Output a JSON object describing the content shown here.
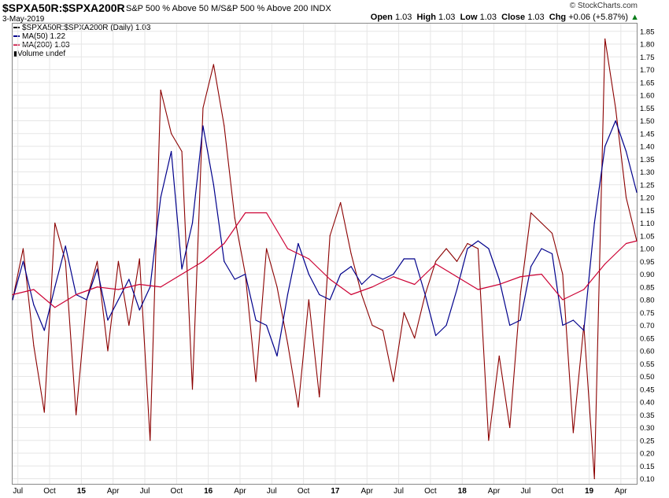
{
  "header": {
    "symbol": "$SPXA50R:$SPXA200R",
    "description": "S&P 500 % Above 50 M/S&P 500 % Above 200",
    "exchange": "INDX",
    "date": "3-May-2019",
    "brand": "© StockCharts.com",
    "open_label": "Open",
    "open": "1.03",
    "high_label": "High",
    "high": "1.03",
    "low_label": "Low",
    "low": "1.03",
    "close_label": "Close",
    "close": "1.03",
    "chg_label": "Chg",
    "chg": "+0.06 (+5.87%)",
    "chg_arrow": "▲"
  },
  "legend": {
    "price": "$SPXA50R:$SPXA200R (Daily) 1.03",
    "ma50": "MA(50) 1.22",
    "ma200": "MA(200) 1.03",
    "volume": "Volume undef"
  },
  "colors": {
    "price_up": "#000000",
    "price_down": "#8b0000",
    "ma50": "#00008b",
    "ma200": "#cc0033",
    "grid": "#e6e6e6"
  },
  "chart_data": {
    "type": "line",
    "x_axis_labels": [
      "Jul",
      "Oct",
      "15",
      "Apr",
      "Jul",
      "Oct",
      "16",
      "Apr",
      "Jul",
      "Oct",
      "17",
      "Apr",
      "Jul",
      "Oct",
      "18",
      "Apr",
      "Jul",
      "Oct",
      "19",
      "Apr"
    ],
    "y_ticks": [
      "1.85",
      "1.80",
      "1.75",
      "1.70",
      "1.65",
      "1.60",
      "1.55",
      "1.50",
      "1.45",
      "1.40",
      "1.35",
      "1.30",
      "1.25",
      "1.20",
      "1.15",
      "1.10",
      "1.05",
      "1.00",
      "0.95",
      "0.90",
      "0.85",
      "0.80",
      "0.75",
      "0.70",
      "0.65",
      "0.60",
      "0.55",
      "0.50",
      "0.45",
      "0.40",
      "0.35",
      "0.30",
      "0.25",
      "0.20",
      "0.15",
      "0.10"
    ],
    "ylim": [
      0.08,
      1.88
    ],
    "grid": true,
    "scale": "linear",
    "x_range_months": 59,
    "series": [
      {
        "name": "$SPXA50R:$SPXA200R",
        "style": "price",
        "x": [
          0,
          1,
          2,
          3,
          4,
          5,
          6,
          7,
          8,
          9,
          10,
          11,
          12,
          13,
          14,
          15,
          16,
          17,
          18,
          19,
          20,
          21,
          22,
          23,
          24,
          25,
          26,
          27,
          28,
          29,
          30,
          31,
          32,
          33,
          34,
          35,
          36,
          37,
          38,
          39,
          40,
          41,
          42,
          43,
          44,
          45,
          46,
          47,
          48,
          49,
          50,
          51,
          52,
          53,
          54,
          55,
          56,
          57,
          58,
          59
        ],
        "y": [
          0.8,
          1.0,
          0.62,
          0.36,
          1.1,
          0.95,
          0.35,
          0.8,
          0.95,
          0.6,
          0.95,
          0.7,
          0.96,
          0.25,
          1.62,
          1.45,
          1.38,
          0.45,
          1.55,
          1.72,
          1.48,
          1.12,
          0.9,
          0.48,
          1.0,
          0.85,
          0.63,
          0.38,
          0.8,
          0.42,
          1.05,
          1.18,
          0.98,
          0.82,
          0.7,
          0.68,
          0.48,
          0.75,
          0.65,
          0.82,
          0.95,
          1.0,
          0.95,
          1.02,
          1.0,
          0.25,
          0.58,
          0.3,
          0.82,
          1.14,
          1.1,
          1.06,
          0.9,
          0.28,
          0.7,
          0.1,
          1.82,
          1.55,
          1.2,
          1.03
        ]
      },
      {
        "name": "MA(50)",
        "style": "ma50",
        "x": [
          0,
          1,
          2,
          3,
          4,
          5,
          6,
          7,
          8,
          9,
          10,
          11,
          12,
          13,
          14,
          15,
          16,
          17,
          18,
          19,
          20,
          21,
          22,
          23,
          24,
          25,
          26,
          27,
          28,
          29,
          30,
          31,
          32,
          33,
          34,
          35,
          36,
          37,
          38,
          39,
          40,
          41,
          42,
          43,
          44,
          45,
          46,
          47,
          48,
          49,
          50,
          51,
          52,
          53,
          54,
          55,
          56,
          57,
          58,
          59
        ],
        "y": [
          0.8,
          0.95,
          0.78,
          0.68,
          0.85,
          1.01,
          0.82,
          0.8,
          0.92,
          0.72,
          0.8,
          0.88,
          0.76,
          0.85,
          1.2,
          1.38,
          0.92,
          1.1,
          1.48,
          1.25,
          0.95,
          0.88,
          0.9,
          0.72,
          0.7,
          0.58,
          0.82,
          1.02,
          0.9,
          0.82,
          0.8,
          0.9,
          0.93,
          0.86,
          0.9,
          0.88,
          0.9,
          0.96,
          0.96,
          0.82,
          0.66,
          0.7,
          0.84,
          1.0,
          1.03,
          1.0,
          0.88,
          0.7,
          0.72,
          0.93,
          1.0,
          0.98,
          0.7,
          0.72,
          0.68,
          1.1,
          1.4,
          1.5,
          1.38,
          1.22
        ]
      },
      {
        "name": "MA(200)",
        "style": "ma200",
        "x": [
          0,
          2,
          4,
          6,
          8,
          10,
          12,
          14,
          16,
          18,
          20,
          22,
          24,
          26,
          28,
          30,
          32,
          34,
          36,
          38,
          40,
          42,
          44,
          46,
          48,
          50,
          52,
          54,
          56,
          58,
          59
        ],
        "y": [
          0.82,
          0.84,
          0.77,
          0.82,
          0.85,
          0.84,
          0.86,
          0.85,
          0.9,
          0.95,
          1.02,
          1.14,
          1.14,
          1.0,
          0.96,
          0.88,
          0.82,
          0.85,
          0.89,
          0.86,
          0.94,
          0.89,
          0.84,
          0.86,
          0.89,
          0.9,
          0.8,
          0.84,
          0.94,
          1.02,
          1.03
        ]
      }
    ]
  }
}
